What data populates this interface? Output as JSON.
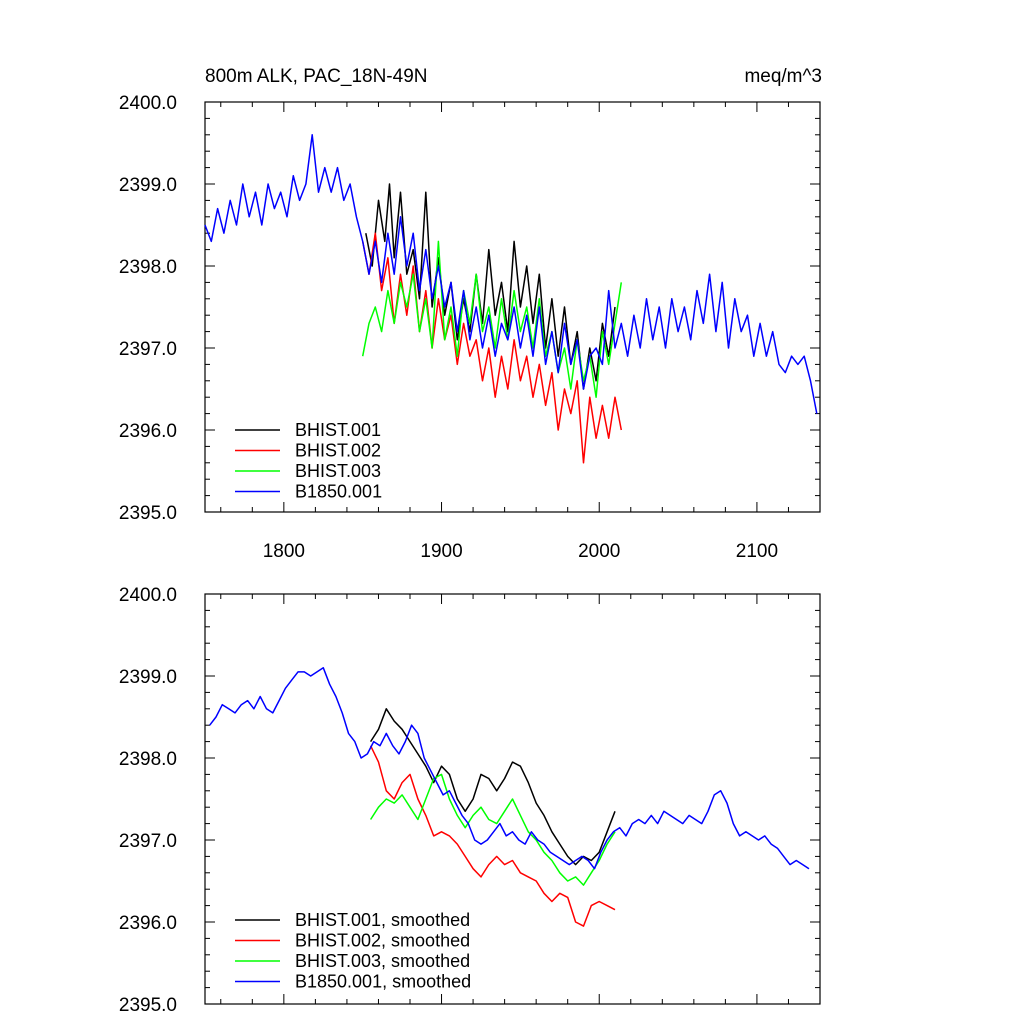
{
  "chart_data": [
    {
      "type": "line",
      "title": "800m ALK, PAC_18N-49N",
      "units": "meq/m^3",
      "xlim": [
        1750,
        2140
      ],
      "ylim": [
        2395.0,
        2400.0
      ],
      "x_ticks": [
        1800,
        1900,
        2000,
        2100
      ],
      "x_tick_labels": [
        "1800",
        "1900",
        "2000",
        "2100"
      ],
      "y_ticks": [
        2395.0,
        2396.0,
        2397.0,
        2398.0,
        2399.0,
        2400.0
      ],
      "y_tick_labels": [
        "2395.0",
        "2396.0",
        "2397.0",
        "2398.0",
        "2399.0",
        "2400.0"
      ],
      "legend_position": "bottom-left",
      "series": [
        {
          "name": "BHIST.001",
          "color": "#000000",
          "x": [
            1852,
            1856,
            1860,
            1864,
            1867,
            1870,
            1874,
            1878,
            1882,
            1886,
            1890,
            1894,
            1898,
            1902,
            1906,
            1910,
            1914,
            1918,
            1922,
            1926,
            1930,
            1934,
            1938,
            1942,
            1946,
            1950,
            1954,
            1958,
            1962,
            1966,
            1970,
            1974,
            1978,
            1982,
            1986,
            1990,
            1994,
            1998,
            2002,
            2006,
            2010
          ],
          "y": [
            2398.4,
            2398.0,
            2398.8,
            2398.3,
            2399.0,
            2398.1,
            2398.9,
            2397.9,
            2398.2,
            2397.6,
            2398.9,
            2397.5,
            2398.1,
            2397.4,
            2397.8,
            2397.1,
            2397.6,
            2397.2,
            2397.9,
            2397.3,
            2398.2,
            2397.4,
            2397.8,
            2397.2,
            2398.3,
            2397.5,
            2398.0,
            2397.3,
            2397.9,
            2397.0,
            2397.6,
            2396.9,
            2397.5,
            2396.8,
            2397.2,
            2396.5,
            2397.0,
            2396.6,
            2397.3,
            2396.9,
            2397.5
          ]
        },
        {
          "name": "BHIST.002",
          "color": "#ff0000",
          "x": [
            1850,
            1854,
            1858,
            1862,
            1866,
            1870,
            1874,
            1878,
            1882,
            1886,
            1890,
            1894,
            1898,
            1902,
            1906,
            1910,
            1914,
            1918,
            1922,
            1926,
            1930,
            1934,
            1938,
            1942,
            1946,
            1950,
            1954,
            1958,
            1962,
            1966,
            1970,
            1974,
            1978,
            1982,
            1986,
            1990,
            1994,
            1998,
            2002,
            2006,
            2010,
            2014
          ],
          "y": [
            2398.3,
            2397.9,
            2398.4,
            2397.7,
            2398.1,
            2397.3,
            2397.9,
            2397.4,
            2398.0,
            2397.2,
            2397.7,
            2397.0,
            2397.6,
            2397.1,
            2397.4,
            2396.8,
            2397.3,
            2396.9,
            2397.1,
            2396.6,
            2397.0,
            2396.4,
            2396.9,
            2396.5,
            2397.1,
            2396.6,
            2396.9,
            2396.4,
            2396.8,
            2396.3,
            2396.7,
            2396.0,
            2396.5,
            2396.2,
            2396.6,
            2395.6,
            2396.4,
            2395.9,
            2396.3,
            2395.9,
            2396.4,
            2396.0
          ]
        },
        {
          "name": "BHIST.003",
          "color": "#00ff00",
          "x": [
            1850,
            1854,
            1858,
            1862,
            1866,
            1870,
            1874,
            1878,
            1882,
            1886,
            1890,
            1894,
            1898,
            1902,
            1906,
            1910,
            1914,
            1918,
            1922,
            1926,
            1930,
            1934,
            1938,
            1942,
            1946,
            1950,
            1954,
            1958,
            1962,
            1966,
            1970,
            1974,
            1978,
            1982,
            1986,
            1990,
            1994,
            1998,
            2002,
            2006,
            2010,
            2014
          ],
          "y": [
            2396.9,
            2397.3,
            2397.5,
            2397.2,
            2397.7,
            2397.3,
            2397.8,
            2397.5,
            2397.9,
            2397.2,
            2397.6,
            2397.0,
            2398.3,
            2397.1,
            2397.5,
            2396.9,
            2397.7,
            2397.3,
            2397.9,
            2397.2,
            2397.5,
            2397.0,
            2397.6,
            2397.1,
            2397.7,
            2397.2,
            2397.5,
            2397.0,
            2397.6,
            2396.9,
            2397.2,
            2396.7,
            2397.0,
            2396.5,
            2397.1,
            2396.6,
            2396.9,
            2396.4,
            2397.2,
            2396.8,
            2397.3,
            2397.8
          ]
        },
        {
          "name": "B1850.001",
          "color": "#0000ff",
          "x": [
            1750,
            1754,
            1758,
            1762,
            1766,
            1770,
            1774,
            1778,
            1782,
            1786,
            1790,
            1794,
            1798,
            1802,
            1806,
            1810,
            1814,
            1818,
            1822,
            1826,
            1830,
            1834,
            1838,
            1842,
            1846,
            1850,
            1854,
            1858,
            1862,
            1866,
            1870,
            1874,
            1878,
            1882,
            1886,
            1890,
            1894,
            1898,
            1902,
            1906,
            1910,
            1914,
            1918,
            1922,
            1926,
            1930,
            1934,
            1938,
            1942,
            1946,
            1950,
            1954,
            1958,
            1962,
            1966,
            1970,
            1974,
            1978,
            1982,
            1986,
            1990,
            1994,
            1998,
            2002,
            2006,
            2010,
            2014,
            2018,
            2022,
            2026,
            2030,
            2034,
            2038,
            2042,
            2046,
            2050,
            2054,
            2058,
            2062,
            2066,
            2070,
            2074,
            2078,
            2082,
            2086,
            2090,
            2094,
            2098,
            2102,
            2106,
            2110,
            2114,
            2118,
            2122,
            2126,
            2130,
            2134,
            2138
          ],
          "y": [
            2398.5,
            2398.3,
            2398.7,
            2398.4,
            2398.8,
            2398.5,
            2399.0,
            2398.6,
            2398.9,
            2398.5,
            2399.0,
            2398.7,
            2398.9,
            2398.6,
            2399.1,
            2398.8,
            2399.0,
            2399.6,
            2398.9,
            2399.2,
            2398.9,
            2399.2,
            2398.8,
            2399.0,
            2398.6,
            2398.3,
            2397.9,
            2398.3,
            2397.8,
            2398.4,
            2397.9,
            2398.6,
            2398.0,
            2398.4,
            2397.7,
            2398.2,
            2397.6,
            2398.0,
            2397.5,
            2397.8,
            2397.2,
            2397.7,
            2397.1,
            2397.5,
            2397.0,
            2397.4,
            2396.9,
            2397.3,
            2397.1,
            2397.5,
            2397.0,
            2397.4,
            2396.9,
            2397.5,
            2396.8,
            2397.2,
            2396.7,
            2397.3,
            2396.8,
            2397.1,
            2396.5,
            2396.9,
            2397.0,
            2396.8,
            2397.7,
            2397.0,
            2397.3,
            2396.9,
            2397.4,
            2397.0,
            2397.6,
            2397.1,
            2397.5,
            2397.0,
            2397.6,
            2397.2,
            2397.5,
            2397.1,
            2397.7,
            2397.3,
            2397.9,
            2397.2,
            2397.8,
            2397.0,
            2397.6,
            2397.2,
            2397.4,
            2396.9,
            2397.3,
            2396.9,
            2397.2,
            2396.8,
            2396.7,
            2396.9,
            2396.8,
            2396.9,
            2396.6,
            2396.2
          ]
        }
      ]
    },
    {
      "type": "line",
      "xlim": [
        1750,
        2140
      ],
      "ylim": [
        2395.0,
        2400.0
      ],
      "y_ticks": [
        2395.0,
        2396.0,
        2397.0,
        2398.0,
        2399.0,
        2400.0
      ],
      "y_tick_labels": [
        "2395.0",
        "2396.0",
        "2397.0",
        "2398.0",
        "2399.0",
        "2400.0"
      ],
      "legend_position": "bottom-left",
      "series": [
        {
          "name": "BHIST.001, smoothed",
          "color": "#000000",
          "x": [
            1855,
            1860,
            1865,
            1870,
            1875,
            1880,
            1885,
            1890,
            1895,
            1900,
            1905,
            1910,
            1915,
            1920,
            1925,
            1930,
            1935,
            1940,
            1945,
            1950,
            1955,
            1960,
            1965,
            1970,
            1975,
            1980,
            1985,
            1990,
            1995,
            2000,
            2005,
            2010
          ],
          "y": [
            2398.2,
            2398.35,
            2398.6,
            2398.45,
            2398.35,
            2398.2,
            2398.05,
            2397.9,
            2397.7,
            2397.9,
            2397.8,
            2397.5,
            2397.35,
            2397.5,
            2397.8,
            2397.75,
            2397.6,
            2397.75,
            2397.95,
            2397.9,
            2397.7,
            2397.45,
            2397.3,
            2397.1,
            2396.95,
            2396.8,
            2396.7,
            2396.8,
            2396.75,
            2396.85,
            2397.1,
            2397.35
          ]
        },
        {
          "name": "BHIST.002, smoothed",
          "color": "#ff0000",
          "x": [
            1855,
            1860,
            1865,
            1870,
            1875,
            1880,
            1885,
            1890,
            1895,
            1900,
            1905,
            1910,
            1915,
            1920,
            1925,
            1930,
            1935,
            1940,
            1945,
            1950,
            1955,
            1960,
            1965,
            1970,
            1975,
            1980,
            1985,
            1990,
            1995,
            2000,
            2005,
            2010
          ],
          "y": [
            2398.15,
            2397.95,
            2397.6,
            2397.5,
            2397.7,
            2397.8,
            2397.5,
            2397.3,
            2397.05,
            2397.1,
            2397.05,
            2396.95,
            2396.8,
            2396.65,
            2396.55,
            2396.7,
            2396.8,
            2396.7,
            2396.75,
            2396.6,
            2396.55,
            2396.5,
            2396.35,
            2396.25,
            2396.35,
            2396.3,
            2396.0,
            2395.95,
            2396.2,
            2396.25,
            2396.2,
            2396.15
          ]
        },
        {
          "name": "BHIST.003, smoothed",
          "color": "#00ff00",
          "x": [
            1855,
            1860,
            1865,
            1870,
            1875,
            1880,
            1885,
            1890,
            1895,
            1900,
            1905,
            1910,
            1915,
            1920,
            1925,
            1930,
            1935,
            1940,
            1945,
            1950,
            1955,
            1960,
            1965,
            1970,
            1975,
            1980,
            1985,
            1990,
            1995,
            2000,
            2005,
            2010
          ],
          "y": [
            2397.25,
            2397.4,
            2397.5,
            2397.45,
            2397.55,
            2397.4,
            2397.25,
            2397.5,
            2397.75,
            2397.8,
            2397.5,
            2397.3,
            2397.15,
            2397.3,
            2397.4,
            2397.25,
            2397.2,
            2397.35,
            2397.5,
            2397.3,
            2397.1,
            2397.0,
            2396.85,
            2396.75,
            2396.6,
            2396.5,
            2396.55,
            2396.45,
            2396.6,
            2396.75,
            2396.95,
            2397.1
          ]
        },
        {
          "name": "B1850.001, smoothed",
          "color": "#0000ff",
          "x": [
            1753,
            1757,
            1761,
            1765,
            1769,
            1773,
            1777,
            1781,
            1785,
            1789,
            1793,
            1797,
            1801,
            1805,
            1809,
            1813,
            1817,
            1821,
            1825,
            1829,
            1833,
            1837,
            1841,
            1845,
            1849,
            1853,
            1857,
            1861,
            1865,
            1869,
            1873,
            1877,
            1881,
            1885,
            1889,
            1893,
            1897,
            1901,
            1905,
            1909,
            1913,
            1917,
            1921,
            1925,
            1929,
            1933,
            1937,
            1941,
            1945,
            1949,
            1953,
            1957,
            1961,
            1965,
            1969,
            1973,
            1977,
            1981,
            1985,
            1989,
            1993,
            1997,
            2001,
            2005,
            2009,
            2013,
            2017,
            2021,
            2025,
            2029,
            2033,
            2037,
            2041,
            2045,
            2049,
            2053,
            2057,
            2061,
            2065,
            2069,
            2073,
            2077,
            2081,
            2085,
            2089,
            2093,
            2097,
            2101,
            2105,
            2109,
            2113,
            2117,
            2121,
            2125,
            2129,
            2133
          ],
          "y": [
            2398.4,
            2398.5,
            2398.65,
            2398.6,
            2398.55,
            2398.65,
            2398.7,
            2398.6,
            2398.75,
            2398.6,
            2398.55,
            2398.7,
            2398.85,
            2398.95,
            2399.05,
            2399.05,
            2399.0,
            2399.05,
            2399.1,
            2398.9,
            2398.75,
            2398.55,
            2398.3,
            2398.2,
            2398.0,
            2398.05,
            2398.2,
            2398.15,
            2398.3,
            2398.15,
            2398.05,
            2398.2,
            2398.4,
            2398.3,
            2398.0,
            2397.85,
            2397.7,
            2397.55,
            2397.6,
            2397.45,
            2397.3,
            2397.2,
            2397.0,
            2396.95,
            2397.0,
            2397.1,
            2397.2,
            2397.05,
            2397.1,
            2397.0,
            2396.95,
            2397.1,
            2397.0,
            2396.95,
            2396.85,
            2396.8,
            2396.75,
            2396.7,
            2396.75,
            2396.8,
            2396.75,
            2396.65,
            2396.85,
            2397.0,
            2397.1,
            2397.15,
            2397.05,
            2397.2,
            2397.25,
            2397.2,
            2397.3,
            2397.2,
            2397.35,
            2397.3,
            2397.25,
            2397.2,
            2397.3,
            2397.25,
            2397.2,
            2397.35,
            2397.55,
            2397.6,
            2397.45,
            2397.2,
            2397.05,
            2397.1,
            2397.05,
            2397.0,
            2397.05,
            2396.95,
            2396.9,
            2396.8,
            2396.7,
            2396.75,
            2396.7,
            2396.65
          ]
        }
      ]
    }
  ]
}
